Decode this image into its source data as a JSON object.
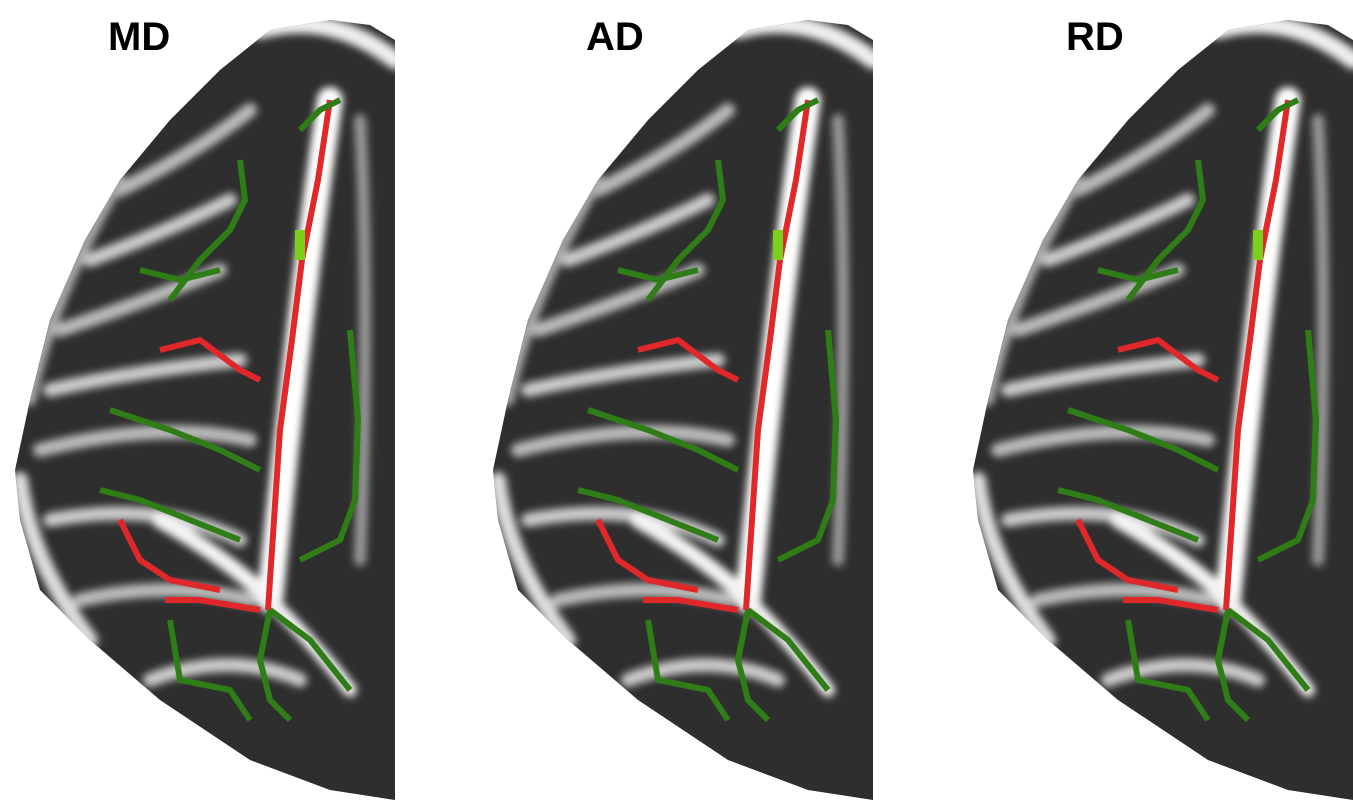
{
  "panels": [
    {
      "label": "MD"
    },
    {
      "label": "AD"
    },
    {
      "label": "RD"
    }
  ]
}
